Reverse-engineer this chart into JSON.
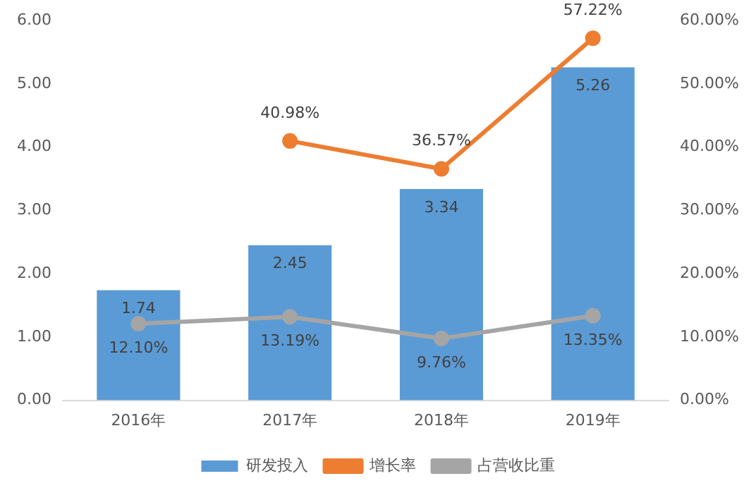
{
  "chart_data": {
    "type": "bar",
    "categories": [
      "2016年",
      "2017年",
      "2018年",
      "2019年"
    ],
    "series": [
      {
        "name": "研发投入",
        "color": "#5b9bd5",
        "values": [
          1.74,
          2.45,
          3.34,
          5.26
        ],
        "value_labels": [
          "1.74",
          "2.45",
          "3.34",
          "5.26"
        ]
      },
      {
        "name": "增长率",
        "type": "line",
        "axis": "y2",
        "color": "#ed7d31",
        "values": [
          null,
          40.98,
          36.57,
          57.22
        ],
        "value_labels": [
          null,
          "40.98%",
          "36.57%",
          "57.22%"
        ]
      },
      {
        "name": "占营收比重",
        "type": "line",
        "axis": "y2",
        "color": "#a5a5a5",
        "values": [
          12.1,
          13.19,
          9.76,
          13.35
        ],
        "value_labels": [
          "12.10%",
          "13.19%",
          "9.76%",
          "13.35%"
        ]
      }
    ],
    "ylim": [
      0,
      6
    ],
    "yticks": [
      {
        "value": 0,
        "label": "0.00"
      },
      {
        "value": 1,
        "label": "1.00"
      },
      {
        "value": 2,
        "label": "2.00"
      },
      {
        "value": 3,
        "label": "3.00"
      },
      {
        "value": 4,
        "label": "4.00"
      },
      {
        "value": 5,
        "label": "5.00"
      },
      {
        "value": 6,
        "label": "6.00"
      }
    ],
    "y2lim": [
      0,
      60
    ],
    "y2ticks": [
      {
        "value": 0,
        "label": "0.00%"
      },
      {
        "value": 10,
        "label": "10.00%"
      },
      {
        "value": 20,
        "label": "20.00%"
      },
      {
        "value": 30,
        "label": "30.00%"
      },
      {
        "value": 40,
        "label": "40.00%"
      },
      {
        "value": 50,
        "label": "50.00%"
      },
      {
        "value": 60,
        "label": "60.00%"
      }
    ],
    "marker": "circle",
    "line_style": "solid",
    "grid": false,
    "legend": "bottom"
  }
}
